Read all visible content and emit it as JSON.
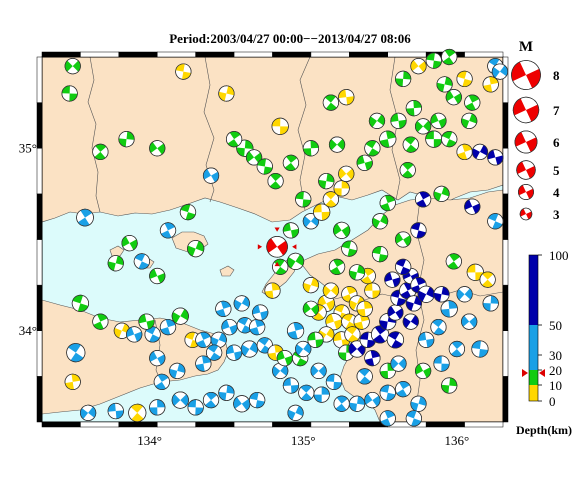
{
  "title": "Period:2003/04/27 00:00−−2013/04/27 08:06",
  "map": {
    "lon_range": [
      133.3,
      136.3
    ],
    "lat_range": [
      33.5,
      35.5
    ],
    "lon_ticks": [
      {
        "value": 134,
        "label": "134°"
      },
      {
        "value": 135,
        "label": "135°"
      },
      {
        "value": 136,
        "label": "136°"
      }
    ],
    "lat_ticks": [
      {
        "value": 34,
        "label": "34°"
      },
      {
        "value": 35,
        "label": "35°"
      }
    ],
    "colors": {
      "sea": "#dcfbfb",
      "land": "#fbe2c4",
      "border": "#555555"
    }
  },
  "magnitude_legend": {
    "title": "M",
    "entries": [
      {
        "label": "8",
        "magnitude": 8
      },
      {
        "label": "7",
        "magnitude": 7
      },
      {
        "label": "6",
        "magnitude": 6
      },
      {
        "label": "5",
        "magnitude": 5
      },
      {
        "label": "4",
        "magnitude": 4
      },
      {
        "label": "3",
        "magnitude": 3
      }
    ]
  },
  "depth_scale": {
    "title": "Depth(km)",
    "ticks": [
      {
        "value": 100,
        "label": "100"
      },
      {
        "value": 50,
        "label": "50"
      },
      {
        "value": 30,
        "label": "30"
      },
      {
        "value": 20,
        "label": "20"
      },
      {
        "value": 10,
        "label": "10"
      },
      {
        "value": 0,
        "label": "0"
      }
    ],
    "bands": [
      {
        "from": 0,
        "to": 10,
        "color": "#ffd700"
      },
      {
        "from": 10,
        "to": 20,
        "color": "#11cc11"
      },
      {
        "from": 20,
        "to": 50,
        "color": "#1aa0e6"
      },
      {
        "from": 50,
        "to": 100,
        "color": "#0000aa"
      }
    ],
    "marker_depth": 18
  },
  "main_event": {
    "lon": 134.83,
    "lat": 34.46,
    "magnitude": 5,
    "depth": 18,
    "color": "#ee0000"
  },
  "mechanisms": [
    {
      "lon": 133.5,
      "lat": 35.45,
      "color": "#11cc11",
      "m": 3.4
    },
    {
      "lon": 133.48,
      "lat": 35.3,
      "color": "#11cc11",
      "m": 3.4
    },
    {
      "lon": 133.68,
      "lat": 34.98,
      "color": "#11cc11",
      "m": 3.4
    },
    {
      "lon": 133.85,
      "lat": 35.05,
      "color": "#11cc11",
      "m": 3.4
    },
    {
      "lon": 134.05,
      "lat": 35.0,
      "color": "#11cc11",
      "m": 3.4
    },
    {
      "lon": 134.22,
      "lat": 35.42,
      "color": "#ffd700",
      "m": 3.4
    },
    {
      "lon": 133.58,
      "lat": 34.62,
      "color": "#1aa0e6",
      "m": 3.7
    },
    {
      "lon": 133.78,
      "lat": 34.37,
      "color": "#11cc11",
      "m": 3.4
    },
    {
      "lon": 133.87,
      "lat": 34.48,
      "color": "#11cc11",
      "m": 3.4
    },
    {
      "lon": 133.55,
      "lat": 34.15,
      "color": "#11cc11",
      "m": 3.6
    },
    {
      "lon": 133.68,
      "lat": 34.05,
      "color": "#11cc11",
      "m": 3.4
    },
    {
      "lon": 133.82,
      "lat": 34.0,
      "color": "#ffd700",
      "m": 3.4
    },
    {
      "lon": 133.9,
      "lat": 33.98,
      "color": "#1aa0e6",
      "m": 3.4
    },
    {
      "lon": 134.02,
      "lat": 33.98,
      "color": "#1aa0e6",
      "m": 3.4
    },
    {
      "lon": 134.12,
      "lat": 34.02,
      "color": "#1aa0e6",
      "m": 3.4
    },
    {
      "lon": 134.2,
      "lat": 34.08,
      "color": "#11cc11",
      "m": 3.6
    },
    {
      "lon": 133.98,
      "lat": 34.05,
      "color": "#11cc11",
      "m": 3.4
    },
    {
      "lon": 133.52,
      "lat": 33.88,
      "color": "#1aa0e6",
      "m": 4.0
    },
    {
      "lon": 133.5,
      "lat": 33.72,
      "color": "#ffd700",
      "m": 3.4
    },
    {
      "lon": 133.6,
      "lat": 33.55,
      "color": "#1aa0e6",
      "m": 3.4
    },
    {
      "lon": 133.78,
      "lat": 33.56,
      "color": "#1aa0e6",
      "m": 3.4
    },
    {
      "lon": 133.92,
      "lat": 33.55,
      "color": "#ffd700",
      "m": 3.8
    },
    {
      "lon": 134.05,
      "lat": 33.58,
      "color": "#1aa0e6",
      "m": 3.4
    },
    {
      "lon": 134.2,
      "lat": 33.62,
      "color": "#1aa0e6",
      "m": 3.6
    },
    {
      "lon": 134.3,
      "lat": 33.58,
      "color": "#1aa0e6",
      "m": 3.4
    },
    {
      "lon": 134.4,
      "lat": 33.62,
      "color": "#1aa0e6",
      "m": 3.4
    },
    {
      "lon": 134.5,
      "lat": 33.66,
      "color": "#1aa0e6",
      "m": 3.4
    },
    {
      "lon": 134.6,
      "lat": 33.6,
      "color": "#1aa0e6",
      "m": 3.6
    },
    {
      "lon": 134.7,
      "lat": 33.62,
      "color": "#1aa0e6",
      "m": 3.4
    },
    {
      "lon": 134.08,
      "lat": 33.72,
      "color": "#1aa0e6",
      "m": 3.4
    },
    {
      "lon": 134.18,
      "lat": 33.78,
      "color": "#1aa0e6",
      "m": 3.4
    },
    {
      "lon": 134.05,
      "lat": 33.85,
      "color": "#1aa0e6",
      "m": 3.4
    },
    {
      "lon": 134.28,
      "lat": 33.95,
      "color": "#ffd700",
      "m": 3.4
    },
    {
      "lon": 134.35,
      "lat": 33.95,
      "color": "#1aa0e6",
      "m": 3.4
    },
    {
      "lon": 134.45,
      "lat": 33.95,
      "color": "#1aa0e6",
      "m": 3.4
    },
    {
      "lon": 134.52,
      "lat": 34.02,
      "color": "#1aa0e6",
      "m": 3.4
    },
    {
      "lon": 134.62,
      "lat": 34.03,
      "color": "#1aa0e6",
      "m": 3.4
    },
    {
      "lon": 134.7,
      "lat": 34.02,
      "color": "#1aa0e6",
      "m": 3.4
    },
    {
      "lon": 134.65,
      "lat": 33.9,
      "color": "#1aa0e6",
      "m": 3.6
    },
    {
      "lon": 134.55,
      "lat": 33.88,
      "color": "#1aa0e6",
      "m": 3.4
    },
    {
      "lon": 134.75,
      "lat": 33.92,
      "color": "#1aa0e6",
      "m": 3.4
    },
    {
      "lon": 134.82,
      "lat": 33.88,
      "color": "#ffd700",
      "m": 3.4
    },
    {
      "lon": 134.85,
      "lat": 33.78,
      "color": "#1aa0e6",
      "m": 3.4
    },
    {
      "lon": 134.92,
      "lat": 33.7,
      "color": "#1aa0e6",
      "m": 3.4
    },
    {
      "lon": 135.02,
      "lat": 33.66,
      "color": "#1aa0e6",
      "m": 3.4
    },
    {
      "lon": 135.12,
      "lat": 33.65,
      "color": "#1aa0e6",
      "m": 3.4
    },
    {
      "lon": 135.1,
      "lat": 33.78,
      "color": "#1aa0e6",
      "m": 3.4
    },
    {
      "lon": 135.2,
      "lat": 33.72,
      "color": "#1aa0e6",
      "m": 3.4
    },
    {
      "lon": 135.25,
      "lat": 33.6,
      "color": "#1aa0e6",
      "m": 3.4
    },
    {
      "lon": 135.35,
      "lat": 33.6,
      "color": "#1aa0e6",
      "m": 3.4
    },
    {
      "lon": 135.45,
      "lat": 33.62,
      "color": "#1aa0e6",
      "m": 3.4
    },
    {
      "lon": 135.55,
      "lat": 33.66,
      "color": "#1aa0e6",
      "m": 3.4
    },
    {
      "lon": 135.65,
      "lat": 33.68,
      "color": "#1aa0e6",
      "m": 3.4
    },
    {
      "lon": 135.75,
      "lat": 33.6,
      "color": "#1aa0e6",
      "m": 3.4
    },
    {
      "lon": 135.78,
      "lat": 33.78,
      "color": "#11cc11",
      "m": 3.4
    },
    {
      "lon": 135.72,
      "lat": 33.52,
      "color": "#1aa0e6",
      "m": 3.4
    },
    {
      "lon": 135.55,
      "lat": 33.52,
      "color": "#1aa0e6",
      "m": 3.4
    },
    {
      "lon": 134.95,
      "lat": 33.55,
      "color": "#1aa0e6",
      "m": 3.4
    },
    {
      "lon": 134.88,
      "lat": 33.85,
      "color": "#11cc11",
      "m": 3.4
    },
    {
      "lon": 134.98,
      "lat": 33.85,
      "color": "#11cc11",
      "m": 3.4
    },
    {
      "lon": 134.95,
      "lat": 34.0,
      "color": "#1aa0e6",
      "m": 3.6
    },
    {
      "lon": 134.95,
      "lat": 34.38,
      "color": "#11cc11",
      "m": 3.6
    },
    {
      "lon": 134.92,
      "lat": 34.55,
      "color": "#11cc11",
      "m": 3.4
    },
    {
      "lon": 134.85,
      "lat": 34.35,
      "color": "#11cc11",
      "m": 3.4
    },
    {
      "lon": 134.8,
      "lat": 34.22,
      "color": "#ffd700",
      "m": 3.4
    },
    {
      "lon": 135.05,
      "lat": 34.6,
      "color": "#1aa0e6",
      "m": 3.4
    },
    {
      "lon": 135.12,
      "lat": 34.65,
      "color": "#ffd700",
      "m": 3.6
    },
    {
      "lon": 135.18,
      "lat": 34.72,
      "color": "#ffd700",
      "m": 3.4
    },
    {
      "lon": 135.25,
      "lat": 34.78,
      "color": "#ffd700",
      "m": 3.4
    },
    {
      "lon": 135.28,
      "lat": 34.86,
      "color": "#ffd700",
      "m": 3.4
    },
    {
      "lon": 135.0,
      "lat": 34.72,
      "color": "#11cc11",
      "m": 3.4
    },
    {
      "lon": 134.92,
      "lat": 34.92,
      "color": "#11cc11",
      "m": 3.4
    },
    {
      "lon": 135.15,
      "lat": 34.82,
      "color": "#11cc11",
      "m": 3.4
    },
    {
      "lon": 135.25,
      "lat": 34.55,
      "color": "#11cc11",
      "m": 3.6
    },
    {
      "lon": 135.3,
      "lat": 34.45,
      "color": "#11cc11",
      "m": 3.4
    },
    {
      "lon": 135.22,
      "lat": 34.35,
      "color": "#11cc11",
      "m": 3.4
    },
    {
      "lon": 135.05,
      "lat": 34.25,
      "color": "#ffd700",
      "m": 3.4
    },
    {
      "lon": 135.15,
      "lat": 34.15,
      "color": "#ffd700",
      "m": 3.6
    },
    {
      "lon": 135.25,
      "lat": 34.1,
      "color": "#ffd700",
      "m": 3.4
    },
    {
      "lon": 135.3,
      "lat": 34.2,
      "color": "#ffd700",
      "m": 3.4
    },
    {
      "lon": 135.35,
      "lat": 34.15,
      "color": "#ffd700",
      "m": 3.4
    },
    {
      "lon": 135.2,
      "lat": 34.05,
      "color": "#ffd700",
      "m": 3.6
    },
    {
      "lon": 135.3,
      "lat": 34.05,
      "color": "#ffd700",
      "m": 3.4
    },
    {
      "lon": 135.38,
      "lat": 34.05,
      "color": "#ffd700",
      "m": 3.4
    },
    {
      "lon": 135.15,
      "lat": 33.98,
      "color": "#ffd700",
      "m": 3.4
    },
    {
      "lon": 135.25,
      "lat": 33.95,
      "color": "#ffd700",
      "m": 3.6
    },
    {
      "lon": 135.32,
      "lat": 33.98,
      "color": "#ffd700",
      "m": 3.4
    },
    {
      "lon": 135.4,
      "lat": 34.12,
      "color": "#ffd700",
      "m": 3.4
    },
    {
      "lon": 135.18,
      "lat": 34.22,
      "color": "#ffd700",
      "m": 3.4
    },
    {
      "lon": 135.45,
      "lat": 34.22,
      "color": "#ffd700",
      "m": 3.4
    },
    {
      "lon": 135.1,
      "lat": 34.1,
      "color": "#ffd700",
      "m": 3.4
    },
    {
      "lon": 135.28,
      "lat": 33.88,
      "color": "#11cc11",
      "m": 3.4
    },
    {
      "lon": 135.35,
      "lat": 33.9,
      "color": "#0000aa",
      "m": 3.6
    },
    {
      "lon": 135.42,
      "lat": 33.95,
      "color": "#0000aa",
      "m": 3.4
    },
    {
      "lon": 135.5,
      "lat": 33.98,
      "color": "#0000aa",
      "m": 3.8
    },
    {
      "lon": 135.55,
      "lat": 34.05,
      "color": "#0000aa",
      "m": 3.6
    },
    {
      "lon": 135.6,
      "lat": 34.1,
      "color": "#0000aa",
      "m": 3.4
    },
    {
      "lon": 135.62,
      "lat": 34.18,
      "color": "#0000aa",
      "m": 3.4
    },
    {
      "lon": 135.68,
      "lat": 34.22,
      "color": "#0000aa",
      "m": 3.6
    },
    {
      "lon": 135.72,
      "lat": 34.15,
      "color": "#0000aa",
      "m": 3.4
    },
    {
      "lon": 135.7,
      "lat": 34.3,
      "color": "#0000aa",
      "m": 3.4
    },
    {
      "lon": 135.65,
      "lat": 34.35,
      "color": "#0000aa",
      "m": 3.4
    },
    {
      "lon": 135.75,
      "lat": 34.25,
      "color": "#0000aa",
      "m": 3.4
    },
    {
      "lon": 135.8,
      "lat": 34.2,
      "color": "#0000aa",
      "m": 3.6
    },
    {
      "lon": 135.58,
      "lat": 34.28,
      "color": "#0000aa",
      "m": 3.4
    },
    {
      "lon": 135.6,
      "lat": 33.95,
      "color": "#0000aa",
      "m": 3.6
    },
    {
      "lon": 135.45,
      "lat": 33.85,
      "color": "#0000aa",
      "m": 3.4
    },
    {
      "lon": 135.7,
      "lat": 34.05,
      "color": "#0000aa",
      "m": 3.4
    },
    {
      "lon": 135.8,
      "lat": 33.95,
      "color": "#1aa0e6",
      "m": 3.4
    },
    {
      "lon": 135.88,
      "lat": 34.02,
      "color": "#1aa0e6",
      "m": 3.4
    },
    {
      "lon": 135.95,
      "lat": 34.12,
      "color": "#1aa0e6",
      "m": 3.6
    },
    {
      "lon": 136.05,
      "lat": 34.2,
      "color": "#1aa0e6",
      "m": 3.4
    },
    {
      "lon": 136.12,
      "lat": 34.32,
      "color": "#ffd700",
      "m": 3.6
    },
    {
      "lon": 136.2,
      "lat": 34.28,
      "color": "#ffd700",
      "m": 3.4
    },
    {
      "lon": 136.22,
      "lat": 34.15,
      "color": "#1aa0e6",
      "m": 3.4
    },
    {
      "lon": 136.08,
      "lat": 34.05,
      "color": "#1aa0e6",
      "m": 3.4
    },
    {
      "lon": 136.15,
      "lat": 33.9,
      "color": "#1aa0e6",
      "m": 3.6
    },
    {
      "lon": 135.98,
      "lat": 34.38,
      "color": "#11cc11",
      "m": 3.4
    },
    {
      "lon": 135.9,
      "lat": 34.2,
      "color": "#0000aa",
      "m": 3.4
    },
    {
      "lon": 135.65,
      "lat": 34.5,
      "color": "#11cc11",
      "m": 3.4
    },
    {
      "lon": 135.75,
      "lat": 34.55,
      "color": "#0000aa",
      "m": 3.4
    },
    {
      "lon": 135.78,
      "lat": 34.72,
      "color": "#0000aa",
      "m": 3.4
    },
    {
      "lon": 135.9,
      "lat": 34.75,
      "color": "#11cc11",
      "m": 3.4
    },
    {
      "lon": 136.1,
      "lat": 34.68,
      "color": "#0000aa",
      "m": 3.4
    },
    {
      "lon": 136.25,
      "lat": 34.6,
      "color": "#1aa0e6",
      "m": 3.4
    },
    {
      "lon": 135.55,
      "lat": 34.7,
      "color": "#11cc11",
      "m": 3.4
    },
    {
      "lon": 135.5,
      "lat": 34.6,
      "color": "#11cc11",
      "m": 3.4
    },
    {
      "lon": 135.4,
      "lat": 34.92,
      "color": "#11cc11",
      "m": 3.4
    },
    {
      "lon": 135.45,
      "lat": 35.0,
      "color": "#11cc11",
      "m": 3.4
    },
    {
      "lon": 135.55,
      "lat": 35.05,
      "color": "#11cc11",
      "m": 3.6
    },
    {
      "lon": 135.48,
      "lat": 35.15,
      "color": "#11cc11",
      "m": 3.4
    },
    {
      "lon": 135.62,
      "lat": 35.15,
      "color": "#11cc11",
      "m": 3.4
    },
    {
      "lon": 135.7,
      "lat": 35.02,
      "color": "#11cc11",
      "m": 3.4
    },
    {
      "lon": 135.72,
      "lat": 35.22,
      "color": "#11cc11",
      "m": 3.4
    },
    {
      "lon": 135.78,
      "lat": 35.12,
      "color": "#11cc11",
      "m": 3.4
    },
    {
      "lon": 135.85,
      "lat": 35.05,
      "color": "#11cc11",
      "m": 3.6
    },
    {
      "lon": 135.68,
      "lat": 34.88,
      "color": "#11cc11",
      "m": 3.4
    },
    {
      "lon": 135.65,
      "lat": 35.38,
      "color": "#11cc11",
      "m": 3.4
    },
    {
      "lon": 135.75,
      "lat": 35.45,
      "color": "#ffd700",
      "m": 3.4
    },
    {
      "lon": 135.85,
      "lat": 35.48,
      "color": "#11cc11",
      "m": 3.4
    },
    {
      "lon": 135.95,
      "lat": 35.5,
      "color": "#11cc11",
      "m": 3.4
    },
    {
      "lon": 135.92,
      "lat": 35.35,
      "color": "#11cc11",
      "m": 3.4
    },
    {
      "lon": 135.98,
      "lat": 35.28,
      "color": "#11cc11",
      "m": 3.4
    },
    {
      "lon": 136.05,
      "lat": 35.38,
      "color": "#ffd700",
      "m": 3.4
    },
    {
      "lon": 136.1,
      "lat": 35.25,
      "color": "#11cc11",
      "m": 3.4
    },
    {
      "lon": 136.08,
      "lat": 35.15,
      "color": "#11cc11",
      "m": 3.4
    },
    {
      "lon": 135.88,
      "lat": 35.15,
      "color": "#11cc11",
      "m": 3.4
    },
    {
      "lon": 135.95,
      "lat": 35.05,
      "color": "#11cc11",
      "m": 3.4
    },
    {
      "lon": 136.05,
      "lat": 34.98,
      "color": "#ffd700",
      "m": 3.4
    },
    {
      "lon": 136.15,
      "lat": 34.98,
      "color": "#0000aa",
      "m": 3.4
    },
    {
      "lon": 136.25,
      "lat": 34.95,
      "color": "#0000aa",
      "m": 3.4
    },
    {
      "lon": 136.25,
      "lat": 35.45,
      "color": "#1aa0e6",
      "m": 3.4
    },
    {
      "lon": 136.22,
      "lat": 35.35,
      "color": "#ffd700",
      "m": 3.4
    },
    {
      "lon": 136.28,
      "lat": 35.42,
      "color": "#1aa0e6",
      "m": 3.4
    },
    {
      "lon": 135.28,
      "lat": 35.28,
      "color": "#ffd700",
      "m": 3.4
    },
    {
      "lon": 135.18,
      "lat": 35.25,
      "color": "#11cc11",
      "m": 3.4
    },
    {
      "lon": 135.05,
      "lat": 35.0,
      "color": "#11cc11",
      "m": 3.4
    },
    {
      "lon": 135.22,
      "lat": 35.02,
      "color": "#11cc11",
      "m": 3.4
    },
    {
      "lon": 134.85,
      "lat": 35.12,
      "color": "#ffd700",
      "m": 3.6
    },
    {
      "lon": 134.82,
      "lat": 34.82,
      "color": "#11cc11",
      "m": 3.4
    },
    {
      "lon": 134.62,
      "lat": 35.0,
      "color": "#11cc11",
      "m": 3.6
    },
    {
      "lon": 134.68,
      "lat": 34.95,
      "color": "#11cc11",
      "m": 3.4
    },
    {
      "lon": 134.75,
      "lat": 34.9,
      "color": "#11cc11",
      "m": 3.4
    },
    {
      "lon": 134.55,
      "lat": 35.05,
      "color": "#11cc11",
      "m": 3.4
    },
    {
      "lon": 134.5,
      "lat": 35.3,
      "color": "#ffd700",
      "m": 3.4
    },
    {
      "lon": 134.4,
      "lat": 34.85,
      "color": "#1aa0e6",
      "m": 3.4
    },
    {
      "lon": 134.25,
      "lat": 34.65,
      "color": "#11cc11",
      "m": 3.4
    },
    {
      "lon": 134.12,
      "lat": 34.55,
      "color": "#1aa0e6",
      "m": 3.4
    },
    {
      "lon": 134.3,
      "lat": 34.45,
      "color": "#11cc11",
      "m": 3.6
    },
    {
      "lon": 134.05,
      "lat": 34.3,
      "color": "#11cc11",
      "m": 3.4
    },
    {
      "lon": 133.95,
      "lat": 34.38,
      "color": "#1aa0e6",
      "m": 3.4
    },
    {
      "lon": 134.48,
      "lat": 34.12,
      "color": "#1aa0e6",
      "m": 3.4
    },
    {
      "lon": 134.6,
      "lat": 34.15,
      "color": "#1aa0e6",
      "m": 3.4
    },
    {
      "lon": 134.72,
      "lat": 34.1,
      "color": "#1aa0e6",
      "m": 3.4
    },
    {
      "lon": 134.42,
      "lat": 33.88,
      "color": "#1aa0e6",
      "m": 3.4
    },
    {
      "lon": 134.35,
      "lat": 33.82,
      "color": "#1aa0e6",
      "m": 3.4
    },
    {
      "lon": 135.0,
      "lat": 33.9,
      "color": "#1aa0e6",
      "m": 3.4
    },
    {
      "lon": 135.08,
      "lat": 33.95,
      "color": "#11cc11",
      "m": 3.4
    },
    {
      "lon": 135.4,
      "lat": 33.75,
      "color": "#1aa0e6",
      "m": 3.4
    },
    {
      "lon": 135.55,
      "lat": 33.78,
      "color": "#11cc11",
      "m": 3.4
    },
    {
      "lon": 135.62,
      "lat": 33.82,
      "color": "#1aa0e6",
      "m": 3.4
    },
    {
      "lon": 135.9,
      "lat": 33.82,
      "color": "#1aa0e6",
      "m": 3.4
    },
    {
      "lon": 136.0,
      "lat": 33.9,
      "color": "#1aa0e6",
      "m": 3.4
    },
    {
      "lon": 135.95,
      "lat": 33.7,
      "color": "#11cc11",
      "m": 3.4
    },
    {
      "lon": 135.05,
      "lat": 34.12,
      "color": "#11cc11",
      "m": 3.4
    },
    {
      "lon": 135.5,
      "lat": 34.42,
      "color": "#11cc11",
      "m": 3.4
    },
    {
      "lon": 135.42,
      "lat": 34.3,
      "color": "#ffd700",
      "m": 3.4
    },
    {
      "lon": 135.35,
      "lat": 34.32,
      "color": "#11cc11",
      "m": 3.4
    }
  ]
}
